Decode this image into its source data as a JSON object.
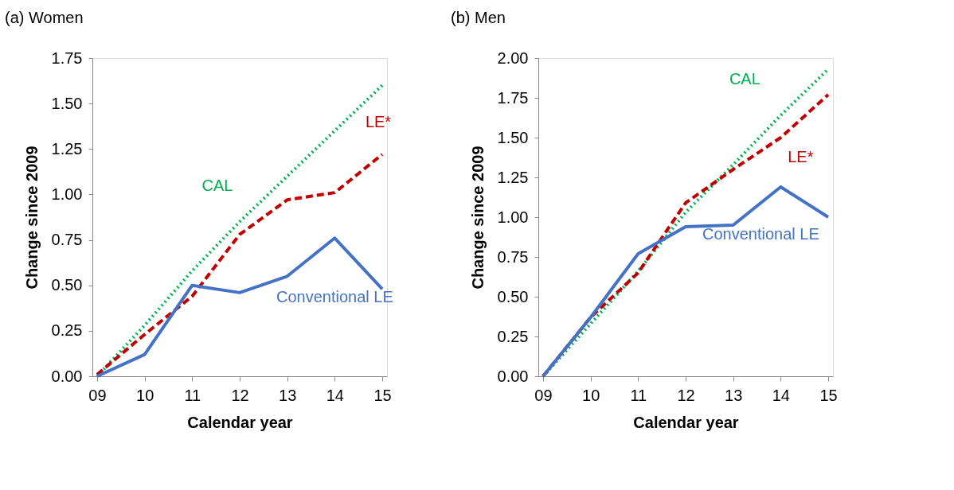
{
  "chart_data": [
    {
      "type": "line",
      "title": "(a) Women",
      "xlabel": "Calendar year",
      "ylabel": "Change since 2009",
      "categories": [
        "09",
        "10",
        "11",
        "12",
        "13",
        "14",
        "15"
      ],
      "ylim": [
        0,
        1.75
      ],
      "yticks": [
        {
          "value": 0,
          "label": "0.00"
        },
        {
          "value": 0.25,
          "label": "0.25"
        },
        {
          "value": 0.5,
          "label": "0.50"
        },
        {
          "value": 0.75,
          "label": "0.75"
        },
        {
          "value": 1,
          "label": "1.00"
        },
        {
          "value": 1.25,
          "label": "1.25"
        },
        {
          "value": 1.5,
          "label": "1.50"
        },
        {
          "value": 1.75,
          "label": "1.75"
        }
      ],
      "grid": false,
      "legend": false,
      "marker": "none",
      "series": [
        {
          "name": "CAL",
          "color": "#00b050",
          "line_style": "dotted",
          "values": [
            0,
            0.28,
            0.58,
            0.85,
            1.1,
            1.35,
            1.6
          ]
        },
        {
          "name": "LE*",
          "color": "#c00000",
          "line_style": "dashed",
          "values": [
            0.01,
            0.23,
            0.44,
            0.78,
            0.97,
            1.01,
            1.22
          ]
        },
        {
          "name": "Conventional LE",
          "color": "#4472c4",
          "line_style": "solid",
          "values": [
            0,
            0.12,
            0.5,
            0.46,
            0.55,
            0.76,
            0.48
          ]
        }
      ]
    },
    {
      "type": "line",
      "title": "(b) Men",
      "xlabel": "Calendar year",
      "ylabel": "Change since 2009",
      "categories": [
        "09",
        "10",
        "11",
        "12",
        "13",
        "14",
        "15"
      ],
      "ylim": [
        0,
        2
      ],
      "yticks": [
        {
          "value": 0,
          "label": "0.00"
        },
        {
          "value": 0.25,
          "label": "0.25"
        },
        {
          "value": 0.5,
          "label": "0.50"
        },
        {
          "value": 0.75,
          "label": "0.75"
        },
        {
          "value": 1,
          "label": "1.00"
        },
        {
          "value": 1.25,
          "label": "1.25"
        },
        {
          "value": 1.5,
          "label": "1.50"
        },
        {
          "value": 1.75,
          "label": "1.75"
        },
        {
          "value": 2,
          "label": "2.00"
        }
      ],
      "grid": false,
      "legend": false,
      "marker": "none",
      "series": [
        {
          "name": "CAL",
          "color": "#00b050",
          "line_style": "dotted",
          "values": [
            0,
            0.33,
            0.66,
            1.03,
            1.33,
            1.64,
            1.93
          ]
        },
        {
          "name": "LE*",
          "color": "#c00000",
          "line_style": "dashed",
          "values": [
            0,
            0.37,
            0.65,
            1.09,
            1.3,
            1.5,
            1.77
          ]
        },
        {
          "name": "Conventional LE",
          "color": "#4472c4",
          "line_style": "solid",
          "values": [
            0,
            0.37,
            0.77,
            0.94,
            0.95,
            1.19,
            1.0
          ]
        }
      ]
    }
  ]
}
